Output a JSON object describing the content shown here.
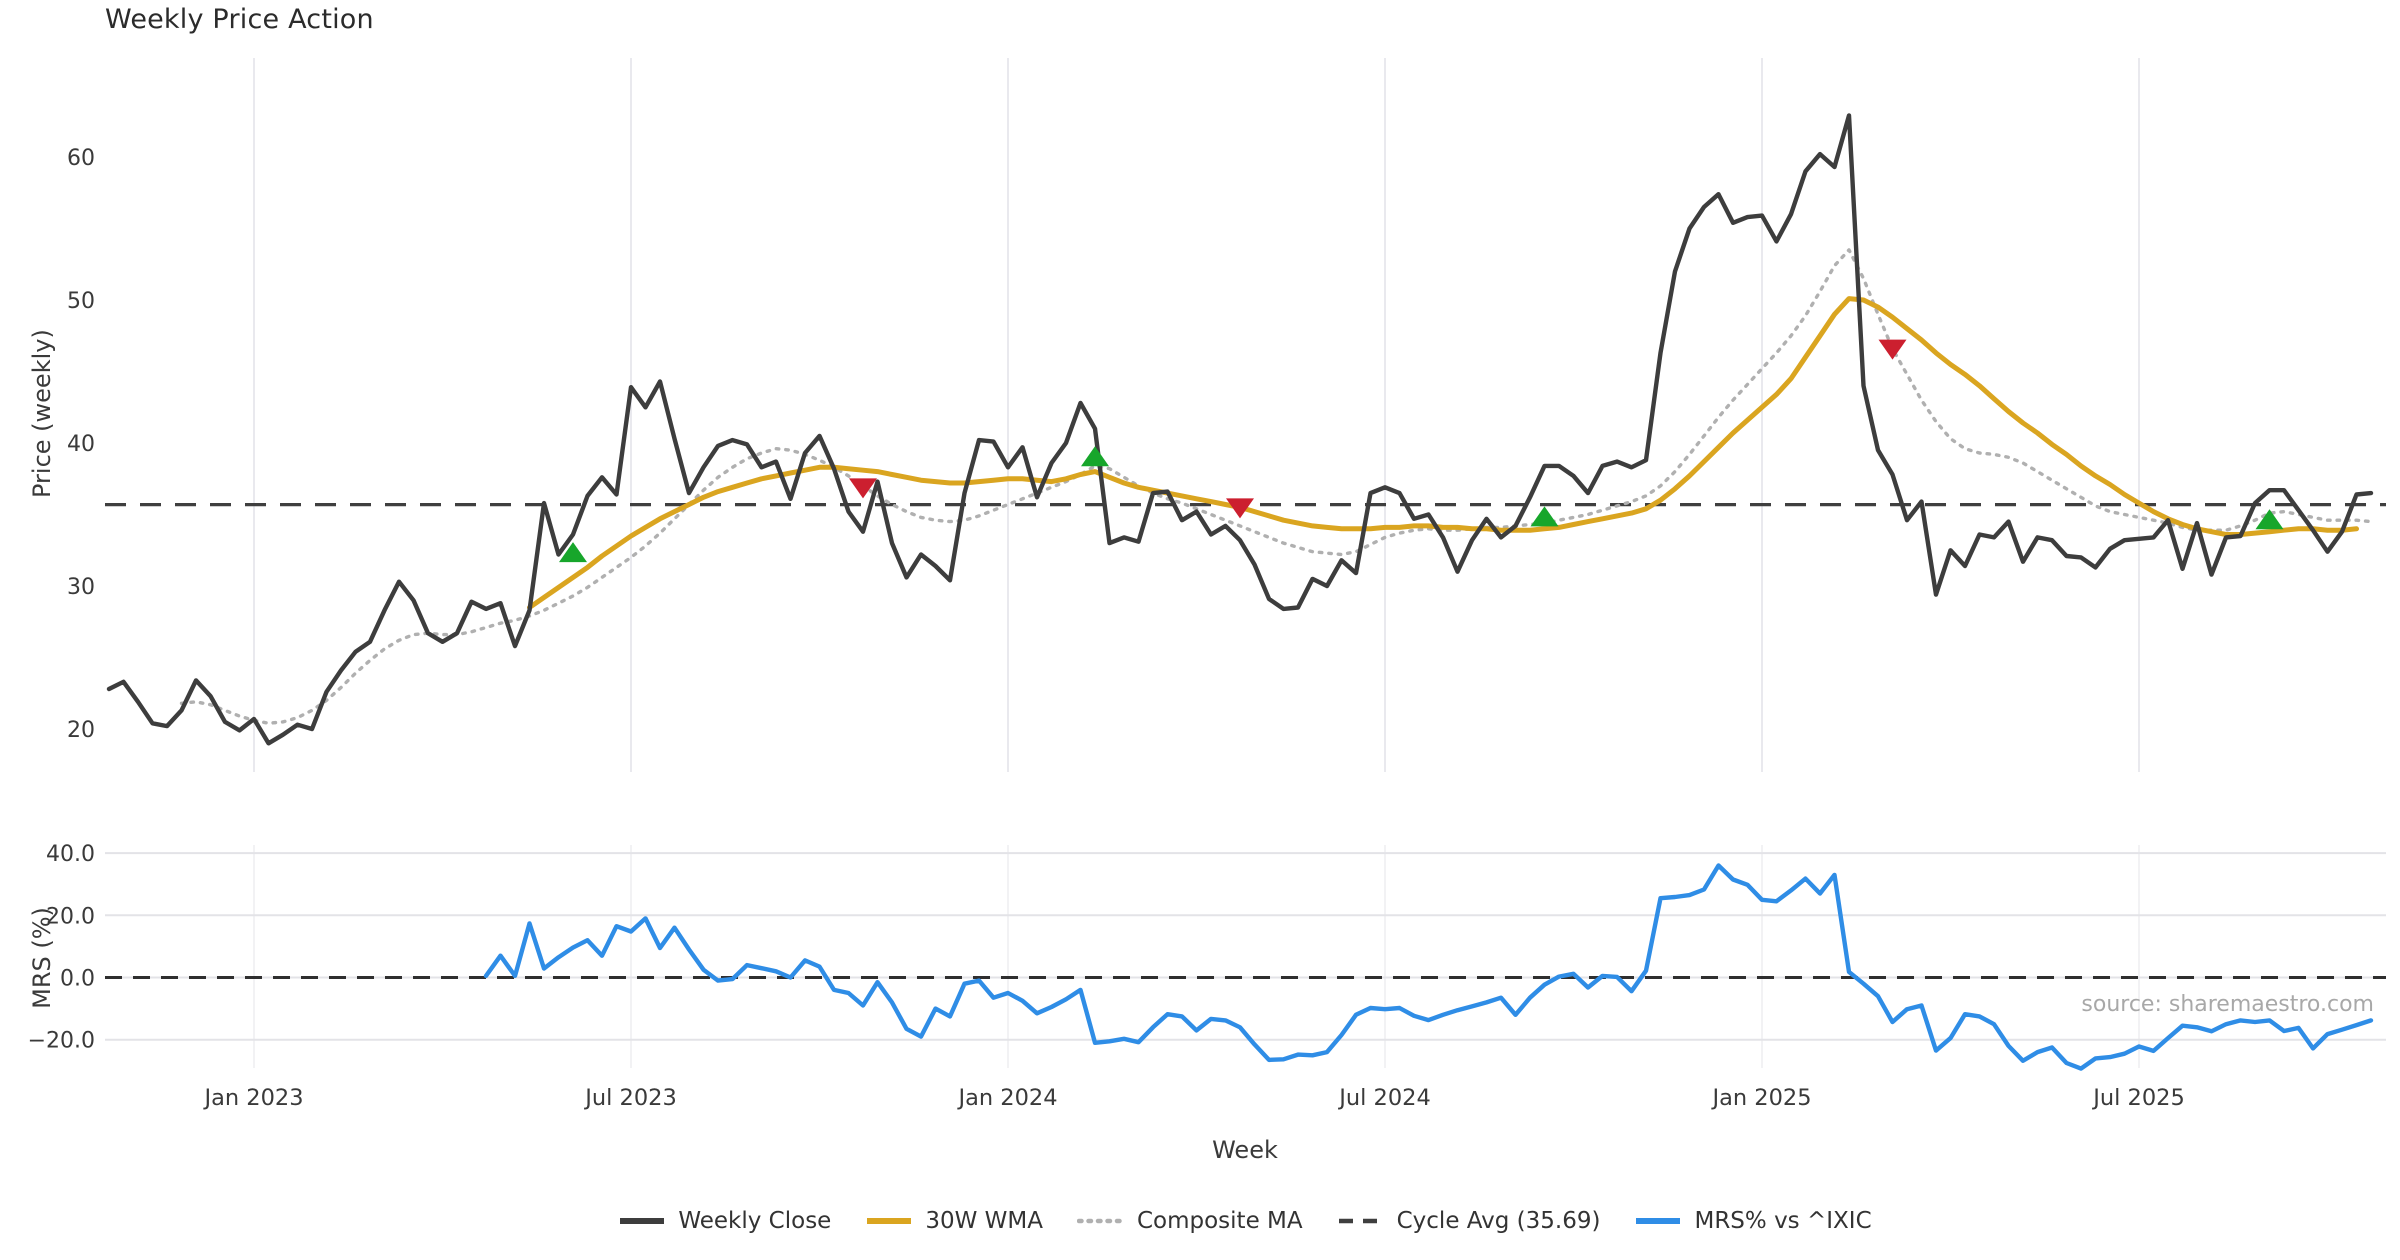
{
  "title": "Weekly Price Action",
  "source_note": "source: sharemaestro.com",
  "colors": {
    "background": "#ffffff",
    "close": "#3d3d3d",
    "wma": "#DAA520",
    "composite": "#b0b0b0",
    "cycle_avg": "#3f3f3f",
    "mrs": "#2F8DE6",
    "buy_marker": "#17a62b",
    "sell_marker": "#CC1F2F",
    "grid": "#e9e9ee",
    "tick_text": "#3a3a3a"
  },
  "chart_data": {
    "type": "line",
    "title": "Weekly Price Action",
    "layout_hint": "two stacked panels sharing weekly x-axis; no horizontal grid in price panel; light grid in MRS panel; legend centered below",
    "x_ticks": [
      {
        "week": 10,
        "label": "Jan 2023"
      },
      {
        "week": 36,
        "label": "Jul 2023"
      },
      {
        "week": 62,
        "label": "Jan 2024"
      },
      {
        "week": 88,
        "label": "Jul 2024"
      },
      {
        "week": 114,
        "label": "Jan 2025"
      },
      {
        "week": 140,
        "label": "Jul 2025"
      }
    ],
    "price_panel": {
      "ylabel": "Price (weekly)",
      "yticks": [
        20,
        30,
        40,
        50,
        60
      ],
      "ylim": [
        17.5,
        66.5
      ],
      "cycle_avg": 35.69,
      "series": [
        {
          "name": "Weekly Close",
          "values": [
            22.8,
            23.3,
            21.9,
            20.4,
            20.2,
            21.3,
            23.4,
            22.3,
            20.5,
            19.9,
            20.7,
            19.0,
            19.6,
            20.3,
            20.0,
            22.6,
            24.1,
            25.4,
            26.1,
            28.3,
            30.3,
            29.0,
            26.7,
            26.1,
            26.7,
            28.9,
            28.4,
            28.8,
            25.8,
            28.3,
            35.8,
            32.2,
            33.6,
            36.3,
            37.6,
            36.4,
            43.9,
            42.5,
            44.3,
            40.3,
            36.5,
            38.3,
            39.8,
            40.2,
            39.9,
            38.3,
            38.7,
            36.1,
            39.3,
            40.5,
            38.2,
            35.2,
            33.8,
            37.3,
            33.0,
            30.6,
            32.2,
            31.4,
            30.4,
            36.5,
            40.2,
            40.1,
            38.3,
            39.7,
            36.2,
            38.6,
            40.0,
            42.8,
            41.0,
            33.0,
            33.4,
            33.1,
            36.5,
            36.6,
            34.6,
            35.2,
            33.6,
            34.2,
            33.2,
            31.5,
            29.1,
            28.4,
            28.5,
            30.5,
            30.0,
            31.8,
            30.9,
            36.5,
            36.9,
            36.5,
            34.7,
            35.0,
            33.4,
            31.0,
            33.2,
            34.7,
            33.4,
            34.2,
            36.2,
            38.4,
            38.4,
            37.7,
            36.5,
            38.4,
            38.7,
            38.3,
            38.8,
            46.3,
            52.0,
            55.0,
            56.5,
            57.4,
            55.4,
            55.8,
            55.9,
            54.1,
            56.0,
            59.0,
            60.2,
            59.3,
            62.9,
            44.0,
            39.5,
            37.8,
            34.6,
            35.9,
            29.4,
            32.5,
            31.4,
            33.6,
            33.4,
            34.5,
            31.7,
            33.4,
            33.2,
            32.1,
            32.0,
            31.3,
            32.6,
            33.2,
            33.3,
            33.4,
            34.6,
            31.2,
            34.4,
            30.8,
            33.4,
            33.5,
            35.8,
            36.7,
            36.7,
            35.3,
            33.9,
            32.4,
            33.8,
            36.4,
            36.5
          ]
        },
        {
          "name": "30W WMA",
          "values": [
            null,
            null,
            null,
            null,
            null,
            null,
            null,
            null,
            null,
            null,
            null,
            null,
            null,
            null,
            null,
            null,
            null,
            null,
            null,
            null,
            null,
            null,
            null,
            null,
            null,
            null,
            null,
            null,
            null,
            28.5,
            29.2,
            29.9,
            30.6,
            31.3,
            32.1,
            32.8,
            33.5,
            34.1,
            34.7,
            35.2,
            35.7,
            36.2,
            36.6,
            36.9,
            37.2,
            37.5,
            37.7,
            37.9,
            38.1,
            38.3,
            38.3,
            38.2,
            38.1,
            38.0,
            37.8,
            37.6,
            37.4,
            37.3,
            37.2,
            37.2,
            37.3,
            37.4,
            37.5,
            37.5,
            37.4,
            37.3,
            37.5,
            37.8,
            38.0,
            37.6,
            37.2,
            36.9,
            36.7,
            36.5,
            36.3,
            36.1,
            35.9,
            35.7,
            35.5,
            35.2,
            34.9,
            34.6,
            34.4,
            34.2,
            34.1,
            34.0,
            34.0,
            34.0,
            34.1,
            34.1,
            34.2,
            34.2,
            34.1,
            34.1,
            34.0,
            34.0,
            33.9,
            33.9,
            33.9,
            34.0,
            34.1,
            34.3,
            34.5,
            34.7,
            34.9,
            35.1,
            35.4,
            36.0,
            36.8,
            37.7,
            38.7,
            39.7,
            40.7,
            41.6,
            42.5,
            43.4,
            44.5,
            46.0,
            47.5,
            49.0,
            50.1,
            50.0,
            49.5,
            48.8,
            48.0,
            47.2,
            46.3,
            45.5,
            44.8,
            44.0,
            43.1,
            42.2,
            41.4,
            40.7,
            39.9,
            39.2,
            38.4,
            37.7,
            37.1,
            36.4,
            35.8,
            35.2,
            34.7,
            34.3,
            34.0,
            33.8,
            33.6,
            33.6,
            33.7,
            33.8,
            33.9,
            34.0,
            34.0,
            33.9,
            33.9,
            34.0,
            null
          ]
        },
        {
          "name": "Composite MA",
          "values": [
            null,
            null,
            null,
            null,
            null,
            21.8,
            21.9,
            21.7,
            21.3,
            20.9,
            20.6,
            20.4,
            20.5,
            20.8,
            21.3,
            22.0,
            22.9,
            23.9,
            24.8,
            25.6,
            26.2,
            26.6,
            26.7,
            26.6,
            26.6,
            26.8,
            27.1,
            27.4,
            27.6,
            27.9,
            28.3,
            28.8,
            29.3,
            29.9,
            30.6,
            31.3,
            32.0,
            32.8,
            33.7,
            34.7,
            35.7,
            36.7,
            37.6,
            38.3,
            38.9,
            39.3,
            39.6,
            39.5,
            39.2,
            38.8,
            38.3,
            37.7,
            37.0,
            36.3,
            35.7,
            35.2,
            34.8,
            34.6,
            34.5,
            34.6,
            34.9,
            35.3,
            35.7,
            36.1,
            36.5,
            36.9,
            37.3,
            37.8,
            38.4,
            38.2,
            37.6,
            37.0,
            36.5,
            36.1,
            35.8,
            35.4,
            35.0,
            34.6,
            34.2,
            33.8,
            33.4,
            33.0,
            32.7,
            32.4,
            32.3,
            32.2,
            32.4,
            32.9,
            33.4,
            33.7,
            33.9,
            34.0,
            33.9,
            33.9,
            34.0,
            34.1,
            34.1,
            34.2,
            34.3,
            34.4,
            34.6,
            34.8,
            35.0,
            35.3,
            35.6,
            35.9,
            36.3,
            37.0,
            38.0,
            39.2,
            40.5,
            41.8,
            43.0,
            44.1,
            45.2,
            46.3,
            47.5,
            48.9,
            50.6,
            52.4,
            53.5,
            51.5,
            49.0,
            46.6,
            44.8,
            43.0,
            41.5,
            40.3,
            39.6,
            39.3,
            39.2,
            39.0,
            38.6,
            38.0,
            37.4,
            36.8,
            36.2,
            35.6,
            35.2,
            35.0,
            34.8,
            34.6,
            34.4,
            34.1,
            33.9,
            33.9,
            33.9,
            34.2,
            34.6,
            35.1,
            35.2,
            35.0,
            34.8,
            34.6,
            34.6,
            34.6,
            34.5
          ]
        }
      ],
      "buy_signals": [
        {
          "week": 32,
          "value": 32.3
        },
        {
          "week": 68,
          "value": 39.0
        },
        {
          "week": 99,
          "value": 34.8
        },
        {
          "week": 149,
          "value": 34.6
        }
      ],
      "sell_signals": [
        {
          "week": 52,
          "value": 36.9
        },
        {
          "week": 78,
          "value": 35.5
        },
        {
          "week": 123,
          "value": 46.6
        }
      ]
    },
    "mrs_panel": {
      "ylabel": "MRS (%)",
      "yticks": [
        -20.0,
        0.0,
        20.0,
        40.0
      ],
      "ylim": [
        -33,
        43
      ],
      "zero_line": 0.0,
      "series": [
        {
          "name": "MRS% vs ^IXIC",
          "values": [
            null,
            null,
            null,
            null,
            null,
            null,
            null,
            null,
            null,
            null,
            null,
            null,
            null,
            null,
            null,
            null,
            null,
            null,
            null,
            null,
            null,
            null,
            null,
            null,
            null,
            null,
            0.5,
            7.0,
            0.5,
            17.4,
            2.9,
            6.5,
            9.6,
            12.0,
            7.0,
            16.5,
            14.8,
            19.0,
            9.5,
            16.0,
            9.0,
            2.5,
            -1.0,
            -0.5,
            4.0,
            3.0,
            2.0,
            0.0,
            5.5,
            3.5,
            -4.0,
            -5.0,
            -9.0,
            -1.5,
            -8.0,
            -16.5,
            -19.0,
            -10.0,
            -12.5,
            -2.0,
            -1.0,
            -6.5,
            -5.0,
            -7.5,
            -11.5,
            -9.5,
            -7.0,
            -4.0,
            -21.0,
            -20.5,
            -19.7,
            -20.8,
            -16.0,
            -11.8,
            -12.5,
            -17.0,
            -13.3,
            -13.8,
            -16.0,
            -21.5,
            -26.5,
            -26.3,
            -24.8,
            -25.0,
            -24.0,
            -18.5,
            -12.0,
            -9.8,
            -10.2,
            -9.8,
            -12.3,
            -13.7,
            -12.0,
            -10.5,
            -9.3,
            -8.0,
            -6.5,
            -12.0,
            -6.5,
            -2.3,
            0.3,
            1.2,
            -3.2,
            0.5,
            0.2,
            -4.4,
            2.2,
            25.5,
            25.9,
            26.5,
            28.3,
            36.0,
            31.5,
            29.8,
            25.0,
            24.5,
            28.0,
            31.8,
            27.0,
            33.0,
            1.8,
            -2.0,
            -6.0,
            -14.3,
            -10.2,
            -9.0,
            -23.5,
            -19.5,
            -11.8,
            -12.5,
            -15.0,
            -22.0,
            -26.8,
            -24.0,
            -22.5,
            -27.5,
            -29.3,
            -26.0,
            -25.6,
            -24.5,
            -22.2,
            -23.6,
            -19.5,
            -15.5,
            -16.0,
            -17.3,
            -15.0,
            -13.8,
            -14.3,
            -13.8,
            -17.2,
            -16.2,
            -22.8,
            -18.2,
            -16.8,
            -15.3,
            -13.8
          ]
        }
      ]
    },
    "xlabel": "Week",
    "legend_position": "bottom-center"
  },
  "legend": {
    "items": [
      {
        "label": "Weekly Close",
        "style": "solid",
        "color": "#3d3d3d"
      },
      {
        "label": "30W WMA",
        "style": "solid",
        "color": "#DAA520"
      },
      {
        "label": "Composite MA",
        "style": "dotted",
        "color": "#b0b0b0"
      },
      {
        "label": "Cycle Avg (35.69)",
        "style": "dashed",
        "color": "#3f3f3f"
      },
      {
        "label": "MRS% vs ^IXIC",
        "style": "solid",
        "color": "#2F8DE6"
      }
    ]
  }
}
